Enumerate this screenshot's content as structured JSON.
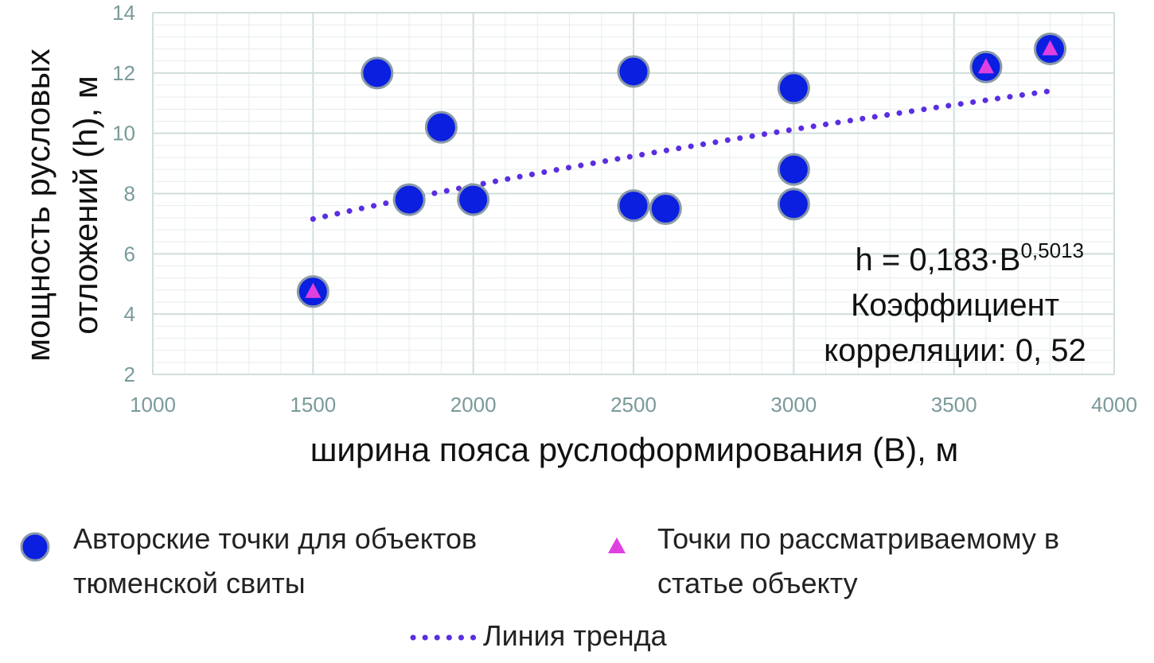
{
  "chart_data": {
    "type": "scatter",
    "xlabel": "ширина пояса руслоформирования (В), м",
    "ylabel_lines": [
      "мощность русловых",
      "отложений (h), м"
    ],
    "xlim": [
      1000,
      4000
    ],
    "ylim": [
      2,
      14
    ],
    "x_ticks": [
      "1000",
      "1500",
      "2000",
      "2500",
      "3000",
      "3500",
      "4000"
    ],
    "y_ticks": [
      "2",
      "4",
      "6",
      "8",
      "10",
      "12",
      "14"
    ],
    "grid": true,
    "series": [
      {
        "name": "Авторские точки для объектов тюменской свиты",
        "marker": "circle",
        "color": "#0a1fe0",
        "points": [
          [
            1500,
            4.75
          ],
          [
            1700,
            12.0
          ],
          [
            1800,
            7.8
          ],
          [
            1900,
            10.2
          ],
          [
            2000,
            7.8
          ],
          [
            2500,
            12.05
          ],
          [
            2500,
            7.6
          ],
          [
            2600,
            7.5
          ],
          [
            3000,
            11.5
          ],
          [
            3000,
            8.8
          ],
          [
            3000,
            7.65
          ],
          [
            3600,
            12.2
          ],
          [
            3800,
            12.8
          ]
        ]
      },
      {
        "name": "Точки по рассматриваемому в статье объекту",
        "marker": "triangle",
        "color": "#e040e0",
        "points": [
          [
            1500,
            4.75
          ],
          [
            3600,
            12.2
          ],
          [
            3800,
            12.8
          ]
        ]
      },
      {
        "name": "Линия тренда",
        "type": "trendline",
        "style": "dotted",
        "color": "#5a2ee0",
        "x_range": [
          1500,
          3800
        ],
        "coefficient": 0.183,
        "exponent": 0.5013
      }
    ],
    "annotation": {
      "equation_base": "h = 0,183·B",
      "equation_exponent": "0,5013",
      "line2": "Коэффициент",
      "line3": "корреляции: 0, 52"
    }
  },
  "legend": {
    "placement": "bottom",
    "item1_line1": "Авторские точки для объектов",
    "item1_line2": "тюменской свиты",
    "item2_line1": "Точки по рассматриваемому в",
    "item2_line2": "статье объекту",
    "item3": "Линия тренда"
  }
}
